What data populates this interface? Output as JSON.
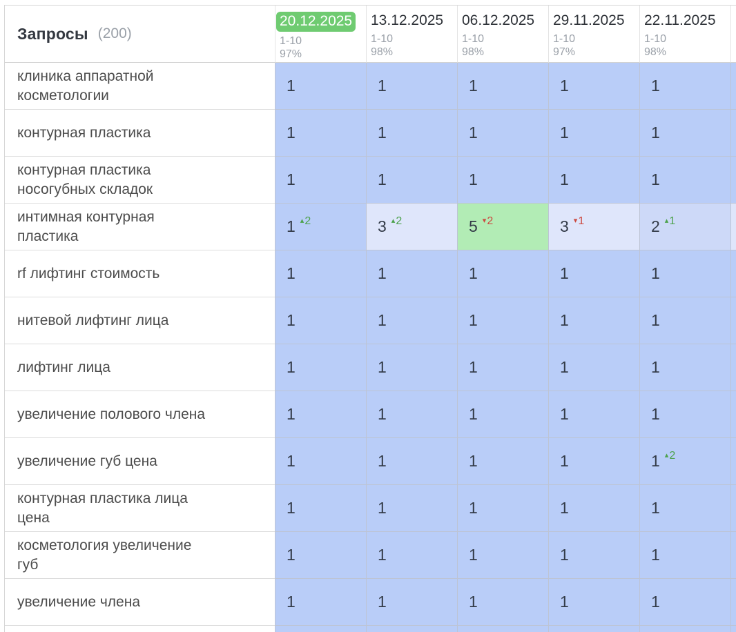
{
  "header": {
    "title": "Запросы",
    "count": "(200)",
    "columns": [
      {
        "date": "20.12.2025",
        "range": "1-10",
        "percent": "97%",
        "highlight": true
      },
      {
        "date": "13.12.2025",
        "range": "1-10",
        "percent": "98%",
        "highlight": false
      },
      {
        "date": "06.12.2025",
        "range": "1-10",
        "percent": "98%",
        "highlight": false
      },
      {
        "date": "29.11.2025",
        "range": "1-10",
        "percent": "97%",
        "highlight": false
      },
      {
        "date": "22.11.2025",
        "range": "1-10",
        "percent": "98%",
        "highlight": false
      }
    ]
  },
  "rows": [
    {
      "query": "клиника аппаратной\nкосметологии",
      "cells": [
        {
          "v": "1"
        },
        {
          "v": "1"
        },
        {
          "v": "1"
        },
        {
          "v": "1"
        },
        {
          "v": "1"
        },
        {}
      ]
    },
    {
      "query": "контурная пластика",
      "cells": [
        {
          "v": "1"
        },
        {
          "v": "1"
        },
        {
          "v": "1"
        },
        {
          "v": "1"
        },
        {
          "v": "1"
        },
        {}
      ]
    },
    {
      "query": "контурная пластика\nносогубных складок",
      "cells": [
        {
          "v": "1"
        },
        {
          "v": "1"
        },
        {
          "v": "1"
        },
        {
          "v": "1"
        },
        {
          "v": "1"
        },
        {}
      ]
    },
    {
      "query": "интимная контурная\nпластика",
      "cells": [
        {
          "v": "1",
          "chg": 2
        },
        {
          "v": "3",
          "chg": 2,
          "tone": "b3"
        },
        {
          "v": "5",
          "chg": -2,
          "tone": "green"
        },
        {
          "v": "3",
          "chg": -1,
          "tone": "b3"
        },
        {
          "v": "2",
          "chg": 1,
          "tone": "b2"
        },
        {
          "tone": "b3"
        }
      ]
    },
    {
      "query": "rf лифтинг стоимость",
      "cells": [
        {
          "v": "1"
        },
        {
          "v": "1"
        },
        {
          "v": "1"
        },
        {
          "v": "1"
        },
        {
          "v": "1"
        },
        {}
      ]
    },
    {
      "query": "нитевой лифтинг лица",
      "cells": [
        {
          "v": "1"
        },
        {
          "v": "1"
        },
        {
          "v": "1"
        },
        {
          "v": "1"
        },
        {
          "v": "1"
        },
        {}
      ]
    },
    {
      "query": "лифтинг лица",
      "cells": [
        {
          "v": "1"
        },
        {
          "v": "1"
        },
        {
          "v": "1"
        },
        {
          "v": "1"
        },
        {
          "v": "1"
        },
        {}
      ]
    },
    {
      "query": "увеличение полового члена",
      "cells": [
        {
          "v": "1"
        },
        {
          "v": "1"
        },
        {
          "v": "1"
        },
        {
          "v": "1"
        },
        {
          "v": "1"
        },
        {}
      ]
    },
    {
      "query": "увеличение губ цена",
      "cells": [
        {
          "v": "1"
        },
        {
          "v": "1"
        },
        {
          "v": "1"
        },
        {
          "v": "1"
        },
        {
          "v": "1",
          "chg": 2
        },
        {}
      ]
    },
    {
      "query": "контурная пластика лица\nцена",
      "cells": [
        {
          "v": "1"
        },
        {
          "v": "1"
        },
        {
          "v": "1"
        },
        {
          "v": "1"
        },
        {
          "v": "1"
        },
        {}
      ]
    },
    {
      "query": "косметология увеличение\nгуб",
      "cells": [
        {
          "v": "1"
        },
        {
          "v": "1"
        },
        {
          "v": "1"
        },
        {
          "v": "1"
        },
        {
          "v": "1"
        },
        {}
      ]
    },
    {
      "query": "увеличение члена",
      "cells": [
        {
          "v": "1"
        },
        {
          "v": "1"
        },
        {
          "v": "1"
        },
        {
          "v": "1"
        },
        {
          "v": "1"
        },
        {}
      ]
    },
    {
      "query": "",
      "partial": true,
      "cells": [
        {},
        {},
        {},
        {},
        {},
        {}
      ]
    }
  ],
  "colors": {
    "selected_date_badge": "#6fcb71",
    "cell_blue": "#b9cdf8",
    "cell_blue_light": "#cdd9f8",
    "cell_blue_lighter": "#dfe6fb",
    "cell_green": "#b2ecb5",
    "change_up": "#4da24d",
    "change_down": "#cc4a40"
  }
}
